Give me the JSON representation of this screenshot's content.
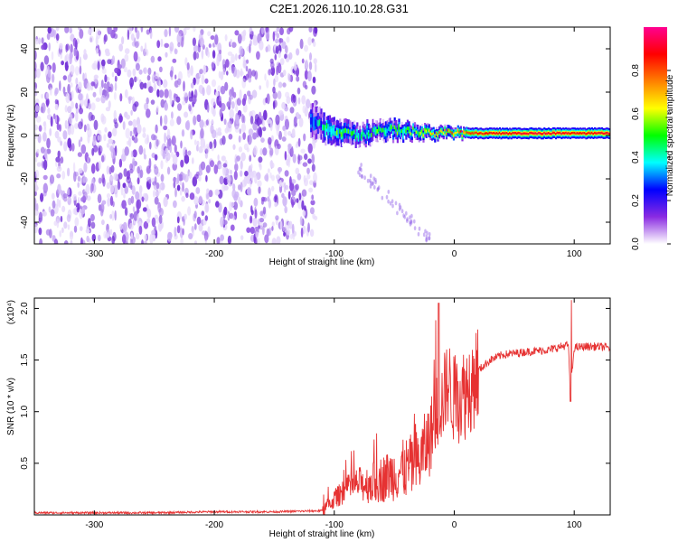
{
  "figure": {
    "title": "C2E1.2026.110.10.28.G31"
  },
  "chart_data": [
    {
      "type": "heatmap",
      "name": "spectrogram",
      "xlabel": "Height of straight line (km)",
      "ylabel": "Frequency (Hz)",
      "xlim": [
        -350,
        130
      ],
      "ylim": [
        -50,
        50
      ],
      "xticks": [
        -300,
        -200,
        -100,
        0,
        100
      ],
      "yticks": [
        -40,
        -20,
        0,
        20,
        40
      ],
      "xtick_labels": [
        "-300",
        "-200",
        "-100",
        "0",
        "100"
      ],
      "ytick_labels": [
        "-40",
        "-20",
        "0",
        "20",
        "40"
      ],
      "noise_region": {
        "x_range": [
          -350,
          -125
        ],
        "freq_range": [
          -50,
          50
        ],
        "typical_amplitude": 0.05
      },
      "signal_band": [
        {
          "x": -120,
          "center_hz": 6,
          "width_hz": 8,
          "amplitude": 0.3
        },
        {
          "x": -100,
          "center_hz": 2,
          "width_hz": 6,
          "amplitude": 0.45
        },
        {
          "x": -80,
          "center_hz": 0,
          "width_hz": 5,
          "amplitude": 0.4
        },
        {
          "x": -60,
          "center_hz": 3,
          "width_hz": 5,
          "amplitude": 0.45
        },
        {
          "x": -40,
          "center_hz": 2,
          "width_hz": 4,
          "amplitude": 0.5
        },
        {
          "x": -20,
          "center_hz": 1,
          "width_hz": 3,
          "amplitude": 0.6
        },
        {
          "x": 0,
          "center_hz": 1,
          "width_hz": 2.5,
          "amplitude": 0.75
        },
        {
          "x": 20,
          "center_hz": 1,
          "width_hz": 2.5,
          "amplitude": 0.85
        },
        {
          "x": 50,
          "center_hz": 1,
          "width_hz": 2.5,
          "amplitude": 0.9
        },
        {
          "x": 80,
          "center_hz": 1,
          "width_hz": 2.5,
          "amplitude": 0.92
        },
        {
          "x": 100,
          "center_hz": 1,
          "width_hz": 2.5,
          "amplitude": 0.88
        },
        {
          "x": 130,
          "center_hz": 1,
          "width_hz": 2.5,
          "amplitude": 0.9
        }
      ],
      "colorbar": {
        "label": "Normalized spectral amplitude",
        "range": [
          0,
          1
        ],
        "ticks": [
          0.0,
          0.2,
          0.4,
          0.6,
          0.8
        ],
        "tick_labels": [
          "0.0",
          "0.2",
          "0.4",
          "0.6",
          "0.8"
        ],
        "colors": [
          "#ffffff",
          "#8a2be2",
          "#0000ff",
          "#00ffff",
          "#00ff00",
          "#ffff00",
          "#ff8000",
          "#ff0000",
          "#ff0090"
        ]
      }
    },
    {
      "type": "line",
      "name": "snr",
      "xlabel": "Height of straight line (km)",
      "ylabel": "SNR (10 * v/v)",
      "ymultiplier_label": "(x10⁴)",
      "xlim": [
        -350,
        130
      ],
      "ylim": [
        0,
        2.1
      ],
      "xticks": [
        -300,
        -200,
        -100,
        0,
        100
      ],
      "yticks": [
        0.5,
        1.0,
        1.5,
        2.0
      ],
      "xtick_labels": [
        "-300",
        "-200",
        "-100",
        "0",
        "100"
      ],
      "ytick_labels": [
        "0.5",
        "1.0",
        "1.5",
        "2.0"
      ],
      "line_color": "#e63232",
      "series": [
        {
          "x": [
            -350,
            -300,
            -250,
            -200,
            -150,
            -110,
            -100,
            -90,
            -80,
            -70,
            -60,
            -50,
            -40,
            -30,
            -20,
            -15,
            -10,
            -5,
            0,
            10,
            20,
            30,
            40,
            60,
            80,
            95,
            97,
            100,
            110,
            120,
            130
          ],
          "y": [
            0.02,
            0.02,
            0.02,
            0.03,
            0.03,
            0.04,
            0.15,
            0.25,
            0.3,
            0.3,
            0.35,
            0.4,
            0.45,
            0.5,
            0.75,
            1.0,
            1.1,
            1.3,
            1.1,
            1.2,
            1.4,
            1.5,
            1.55,
            1.58,
            1.6,
            1.65,
            1.2,
            1.62,
            1.63,
            1.63,
            1.62
          ]
        }
      ]
    }
  ]
}
